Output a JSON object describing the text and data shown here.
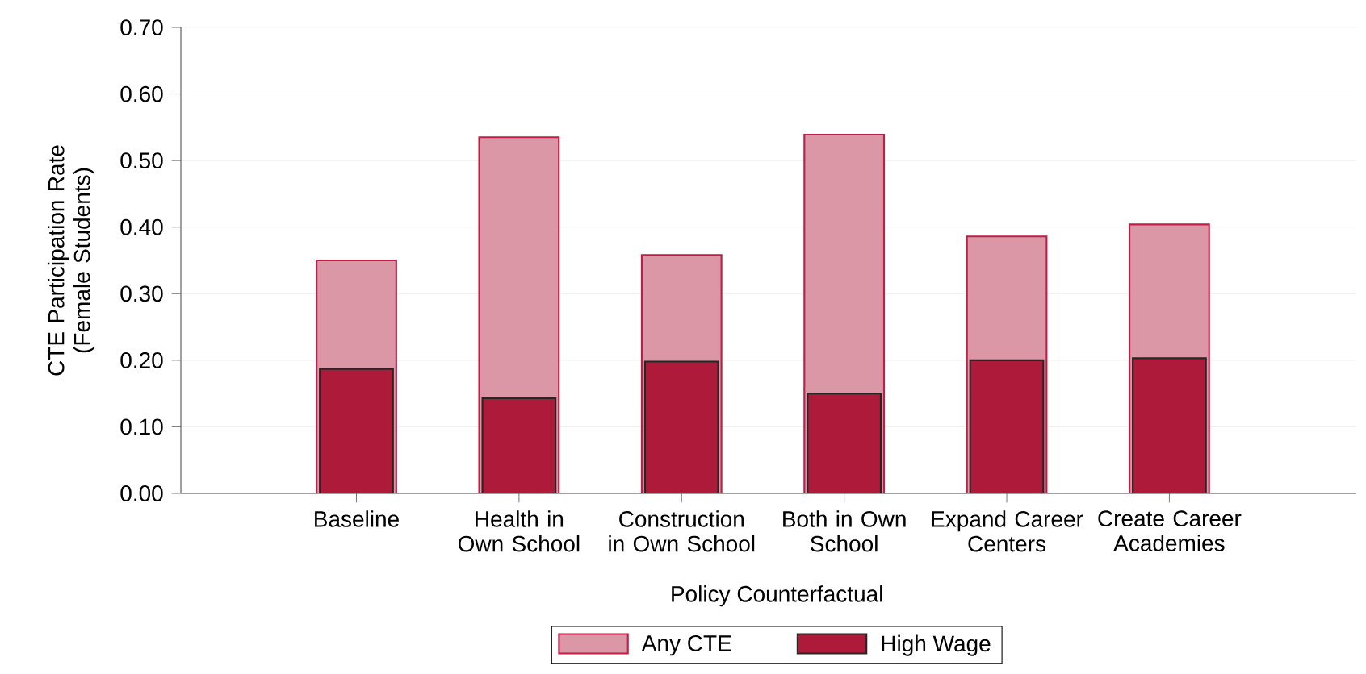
{
  "chart_data": {
    "type": "bar",
    "xlabel": "Policy Counterfactual",
    "ylabel": "CTE Participation Rate (Female Students)",
    "categories": [
      "Baseline",
      "Health in Own School",
      "Construction in Own School",
      "Both in Own School",
      "Expand Career Centers",
      "Create Career Academies"
    ],
    "series": [
      {
        "name": "Any CTE",
        "color": "#db97a5",
        "values": [
          0.35,
          0.535,
          0.358,
          0.539,
          0.386,
          0.404
        ]
      },
      {
        "name": "High Wage",
        "color": "#ae1a3a",
        "values": [
          0.187,
          0.143,
          0.198,
          0.15,
          0.2,
          0.203
        ]
      }
    ],
    "ylim": [
      0,
      0.7
    ],
    "yticks": [
      {
        "value": 0,
        "label": "0.00"
      },
      {
        "value": 0.1,
        "label": "0.10"
      },
      {
        "value": 0.2,
        "label": "0.20"
      },
      {
        "value": 0.3,
        "label": "0.30"
      },
      {
        "value": 0.4,
        "label": "0.40"
      },
      {
        "value": 0.5,
        "label": "0.50"
      },
      {
        "value": 0.6,
        "label": "0.60"
      },
      {
        "value": 0.7,
        "label": "0.70"
      }
    ],
    "grid": "y",
    "legend": "bottom"
  }
}
